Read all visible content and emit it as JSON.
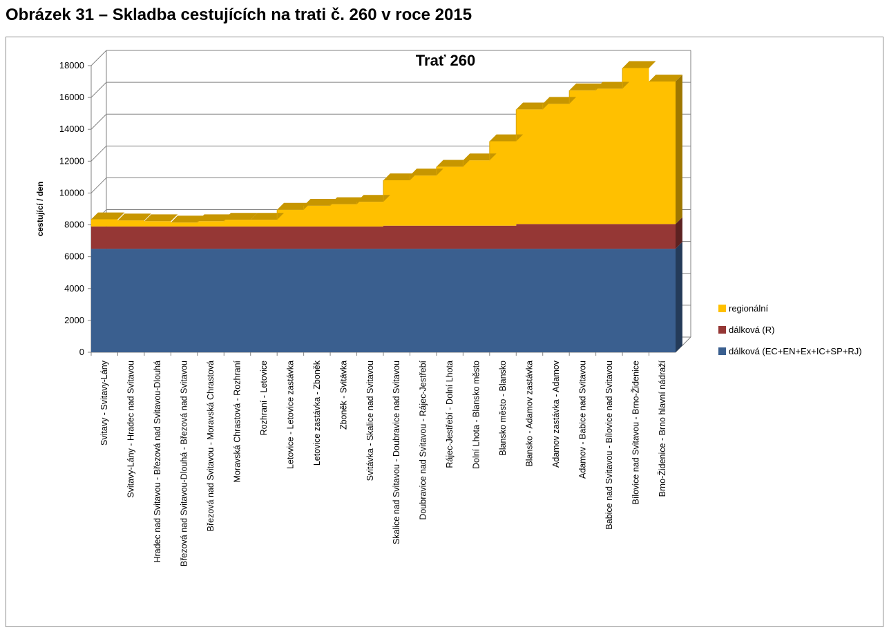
{
  "page": {
    "heading": "Obrázek 31 – Skladba cestujících na trati č. 260 v roce 2015"
  },
  "chart_data": {
    "type": "area",
    "stacked": true,
    "three_d": true,
    "title": "Trať 260",
    "xlabel": "",
    "ylabel": "cestující / den",
    "ylim": [
      0,
      18000
    ],
    "yticks": [
      0,
      2000,
      4000,
      6000,
      8000,
      10000,
      12000,
      14000,
      16000,
      18000
    ],
    "grid": true,
    "legend_position": "right",
    "categories": [
      "Svitavy - Svitavy-Lány",
      "Svitavy-Lány - Hradec nad Svitavou",
      "Hradec nad Svitavou - Březová nad Svitavou-Dlouhá",
      "Březová nad Svitavou-Dlouhá - Březová nad Svitavou",
      "Březová nad Svitavou - Moravská Chrastová",
      "Moravská Chrastová - Rozhraní",
      "Rozhraní - Letovice",
      "Letovice - Letovice zastávka",
      "Letovice zastávka - Zboněk",
      "Zboněk - Svitávka",
      "Svitávka - Skalice nad Svitavou",
      "Skalice nad Svitavou - Doubravice nad Svitavou",
      "Doubravice nad Svitavou - Rájec-Jestřebí",
      "Rájec-Jestřebí - Dolní Lhota",
      "Dolní Lhota - Blansko město",
      "Blansko město - Blansko",
      "Blansko - Adamov zastávka",
      "Adamov zastávka - Adamov",
      "Adamov - Babice nad Svitavou",
      "Babice nad Svitavou - Bílovice nad Svitavou",
      "Bílovice nad Svitavou - Brno-Židenice",
      "Brno-Židenice - Brno hlavní nádraží"
    ],
    "series": [
      {
        "name": "dálková (EC+EN+Ex+IC+SP+RJ)",
        "color": "#3a5f8f",
        "values": [
          6500,
          6500,
          6500,
          6500,
          6500,
          6500,
          6500,
          6500,
          6500,
          6500,
          6500,
          6500,
          6500,
          6500,
          6500,
          6500,
          6500,
          6500,
          6500,
          6500,
          6500,
          6500
        ]
      },
      {
        "name": "dálková (R)",
        "color": "#953735",
        "values": [
          1400,
          1400,
          1400,
          1400,
          1400,
          1400,
          1400,
          1400,
          1400,
          1400,
          1400,
          1450,
          1450,
          1450,
          1450,
          1450,
          1550,
          1550,
          1550,
          1550,
          1550,
          1550
        ]
      },
      {
        "name": "regionální",
        "color": "#ffc000",
        "values": [
          450,
          380,
          330,
          250,
          330,
          420,
          420,
          1050,
          1300,
          1400,
          1550,
          2850,
          3150,
          3700,
          4100,
          5300,
          7200,
          7550,
          8400,
          8500,
          9800,
          8950
        ]
      }
    ]
  }
}
